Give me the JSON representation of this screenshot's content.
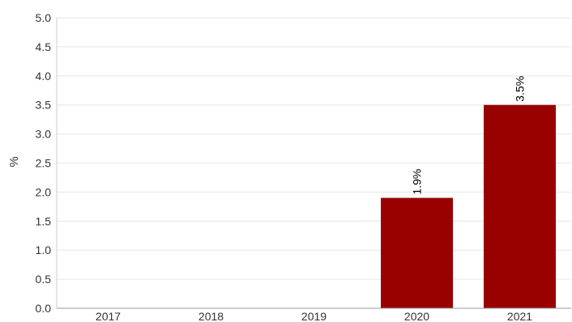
{
  "chart_data": {
    "type": "bar",
    "categories": [
      "2017",
      "2018",
      "2019",
      "2020",
      "2021"
    ],
    "values": [
      null,
      null,
      null,
      1.9,
      3.5
    ],
    "data_labels": [
      "",
      "",
      "",
      "1.9%",
      "3.5%"
    ],
    "ylabel": "%",
    "ylim": [
      0,
      5
    ],
    "yticks": [
      "0.0",
      "0.5",
      "1.0",
      "1.5",
      "2.0",
      "2.5",
      "3.0",
      "3.5",
      "4.0",
      "4.5",
      "5.0"
    ],
    "grid": true,
    "legend": "none",
    "bar_color": "#990000"
  }
}
